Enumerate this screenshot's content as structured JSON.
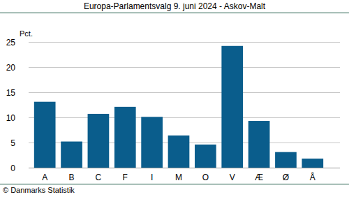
{
  "chart_data": {
    "type": "bar",
    "title": "Europa-Parlamentsvalg 9. juni 2024 - Askov-Malt",
    "y_label": "Pct.",
    "source": "© Danmarks Statistik",
    "categories": [
      "A",
      "B",
      "C",
      "F",
      "I",
      "M",
      "O",
      "V",
      "Æ",
      "Ø",
      "Å"
    ],
    "values": [
      13.1,
      5.2,
      10.7,
      12.1,
      10.1,
      6.4,
      4.6,
      24.2,
      9.3,
      3.1,
      1.8
    ],
    "color": "#0a5d8c",
    "ylim": [
      0,
      25
    ],
    "yticks": [
      0,
      5,
      10,
      15,
      20,
      25
    ],
    "grid": true
  }
}
